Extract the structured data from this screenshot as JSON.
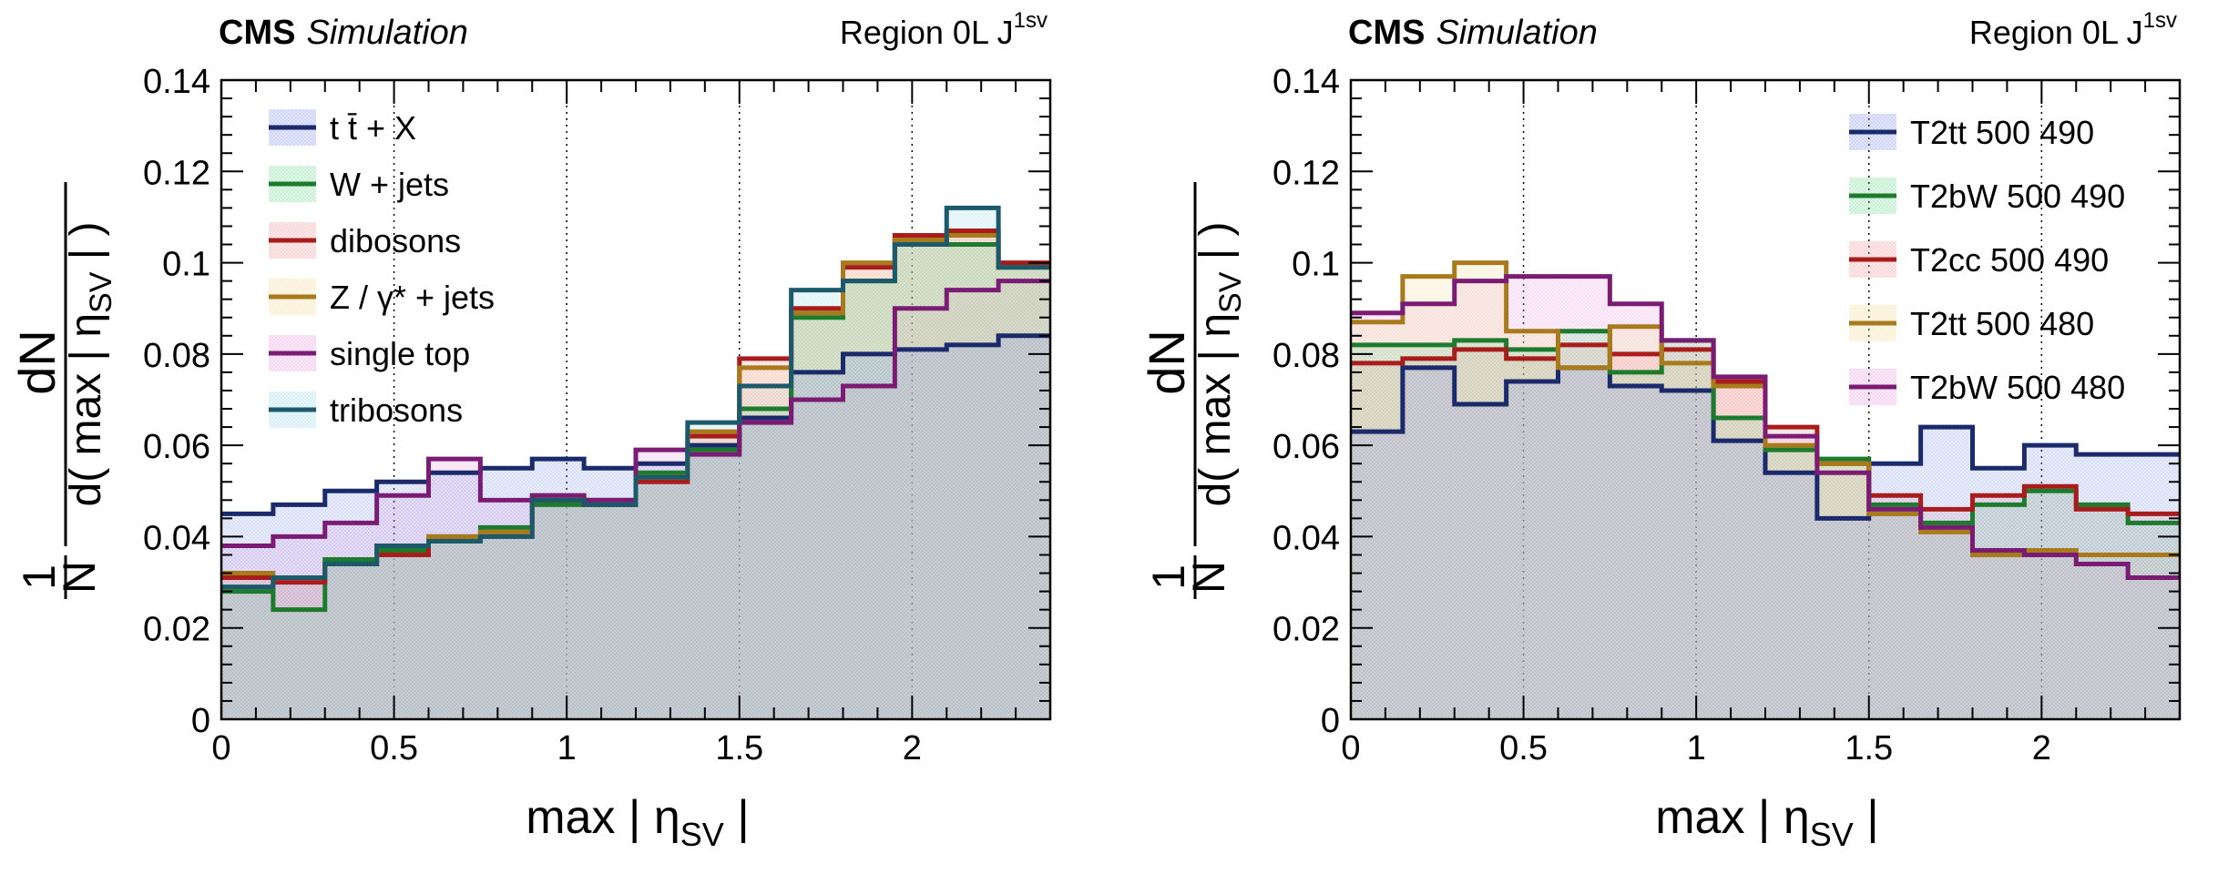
{
  "chart_data": [
    {
      "type": "step-histogram",
      "header": {
        "experiment": "CMS",
        "label": "Simulation",
        "region": "Region 0L J",
        "region_sup": "1sv"
      },
      "ylabel": {
        "prefix_num": "1",
        "prefix_den": "N",
        "num": "dN",
        "den": "d( max | η",
        "den_sub": "SV",
        "den_end": " | )"
      },
      "xlabel": {
        "main": "max | η",
        "sub": "SV",
        "end": " |"
      },
      "xlim": [
        0,
        2.4
      ],
      "ylim": [
        0,
        0.14
      ],
      "xticks": [
        {
          "value": 0,
          "label": "0"
        },
        {
          "value": 0.5,
          "label": "0.5"
        },
        {
          "value": 1,
          "label": "1"
        },
        {
          "value": 1.5,
          "label": "1.5"
        },
        {
          "value": 2,
          "label": "2"
        }
      ],
      "yticks": [
        {
          "value": 0,
          "label": "0"
        },
        {
          "value": 0.02,
          "label": "0.02"
        },
        {
          "value": 0.04,
          "label": "0.04"
        },
        {
          "value": 0.06,
          "label": "0.06"
        },
        {
          "value": 0.08,
          "label": "0.08"
        },
        {
          "value": 0.1,
          "label": "0.1"
        },
        {
          "value": 0.12,
          "label": "0.12"
        },
        {
          "value": 0.14,
          "label": "0.14"
        }
      ],
      "bin_edges": [
        0,
        0.15,
        0.3,
        0.45,
        0.6,
        0.75,
        0.9,
        1.05,
        1.2,
        1.35,
        1.5,
        1.65,
        1.8,
        1.95,
        2.1,
        2.25,
        2.4
      ],
      "series": [
        {
          "name": "t t̄ + X",
          "color": "#1b2a6b",
          "fill": "#8c9be6",
          "values": [
            0.045,
            0.047,
            0.05,
            0.052,
            0.054,
            0.055,
            0.057,
            0.055,
            0.056,
            0.06,
            0.066,
            0.076,
            0.08,
            0.081,
            0.082,
            0.084
          ]
        },
        {
          "name": "W + jets",
          "color": "#1e7b2e",
          "fill": "#7fdc9a",
          "values": [
            0.028,
            0.024,
            0.035,
            0.037,
            0.04,
            0.042,
            0.047,
            0.048,
            0.054,
            0.059,
            0.068,
            0.088,
            0.096,
            0.105,
            0.104,
            0.099
          ]
        },
        {
          "name": "dibosons",
          "color": "#a81c1c",
          "fill": "#f3a0a0",
          "values": [
            0.031,
            0.03,
            0.034,
            0.036,
            0.039,
            0.04,
            0.048,
            0.047,
            0.052,
            0.062,
            0.079,
            0.09,
            0.099,
            0.106,
            0.107,
            0.1
          ]
        },
        {
          "name": "Z / γ* + jets",
          "color": "#a87a1c",
          "fill": "#f6dca0",
          "values": [
            0.032,
            0.031,
            0.034,
            0.038,
            0.04,
            0.041,
            0.049,
            0.048,
            0.053,
            0.063,
            0.077,
            0.089,
            0.1,
            0.105,
            0.106,
            0.099
          ]
        },
        {
          "name": "single top",
          "color": "#7a1c74",
          "fill": "#e8a0de",
          "values": [
            0.038,
            0.04,
            0.043,
            0.049,
            0.057,
            0.048,
            0.049,
            0.048,
            0.059,
            0.058,
            0.065,
            0.07,
            0.073,
            0.09,
            0.094,
            0.096
          ]
        },
        {
          "name": "tribosons",
          "color": "#1c5a6b",
          "fill": "#a0dce8",
          "values": [
            0.029,
            0.031,
            0.034,
            0.038,
            0.039,
            0.04,
            0.048,
            0.047,
            0.053,
            0.065,
            0.073,
            0.094,
            0.096,
            0.104,
            0.112,
            0.099
          ]
        }
      ],
      "legend": "top-left"
    },
    {
      "type": "step-histogram",
      "header": {
        "experiment": "CMS",
        "label": "Simulation",
        "region": "Region 0L J",
        "region_sup": "1sv"
      },
      "ylabel": {
        "prefix_num": "1",
        "prefix_den": "N",
        "num": "dN",
        "den": "d( max | η",
        "den_sub": "SV",
        "den_end": " | )"
      },
      "xlabel": {
        "main": "max | η",
        "sub": "SV",
        "end": " |"
      },
      "xlim": [
        0,
        2.4
      ],
      "ylim": [
        0,
        0.14
      ],
      "xticks": [
        {
          "value": 0,
          "label": "0"
        },
        {
          "value": 0.5,
          "label": "0.5"
        },
        {
          "value": 1,
          "label": "1"
        },
        {
          "value": 1.5,
          "label": "1.5"
        },
        {
          "value": 2,
          "label": "2"
        }
      ],
      "yticks": [
        {
          "value": 0,
          "label": "0"
        },
        {
          "value": 0.02,
          "label": "0.02"
        },
        {
          "value": 0.04,
          "label": "0.04"
        },
        {
          "value": 0.06,
          "label": "0.06"
        },
        {
          "value": 0.08,
          "label": "0.08"
        },
        {
          "value": 0.1,
          "label": "0.1"
        },
        {
          "value": 0.12,
          "label": "0.12"
        },
        {
          "value": 0.14,
          "label": "0.14"
        }
      ],
      "bin_edges": [
        0,
        0.15,
        0.3,
        0.45,
        0.6,
        0.75,
        0.9,
        1.05,
        1.2,
        1.35,
        1.5,
        1.65,
        1.8,
        1.95,
        2.1,
        2.25,
        2.4
      ],
      "series": [
        {
          "name": "T2tt 500 490",
          "color": "#1b2a6b",
          "fill": "#8c9be6",
          "values": [
            0.063,
            0.077,
            0.069,
            0.074,
            0.077,
            0.073,
            0.072,
            0.061,
            0.054,
            0.044,
            0.056,
            0.064,
            0.055,
            0.06,
            0.058,
            0.058
          ]
        },
        {
          "name": "T2bW 500 490",
          "color": "#1e7b2e",
          "fill": "#7fdc9a",
          "values": [
            0.082,
            0.082,
            0.083,
            0.081,
            0.085,
            0.076,
            0.083,
            0.066,
            0.059,
            0.057,
            0.047,
            0.043,
            0.047,
            0.05,
            0.047,
            0.043
          ]
        },
        {
          "name": "T2cc 500 490",
          "color": "#a81c1c",
          "fill": "#f3a0a0",
          "values": [
            0.078,
            0.079,
            0.081,
            0.079,
            0.082,
            0.08,
            0.081,
            0.074,
            0.064,
            0.056,
            0.049,
            0.046,
            0.049,
            0.051,
            0.046,
            0.045
          ]
        },
        {
          "name": "T2tt 500 480",
          "color": "#a87a1c",
          "fill": "#f6dca0",
          "values": [
            0.087,
            0.097,
            0.1,
            0.085,
            0.077,
            0.086,
            0.078,
            0.073,
            0.06,
            0.056,
            0.045,
            0.041,
            0.036,
            0.037,
            0.036,
            0.036
          ]
        },
        {
          "name": "T2bW 500 480",
          "color": "#7a1c74",
          "fill": "#e8a0de",
          "values": [
            0.089,
            0.091,
            0.096,
            0.097,
            0.097,
            0.091,
            0.083,
            0.075,
            0.062,
            0.054,
            0.046,
            0.042,
            0.037,
            0.036,
            0.034,
            0.031
          ]
        }
      ],
      "legend": "top-right"
    }
  ]
}
